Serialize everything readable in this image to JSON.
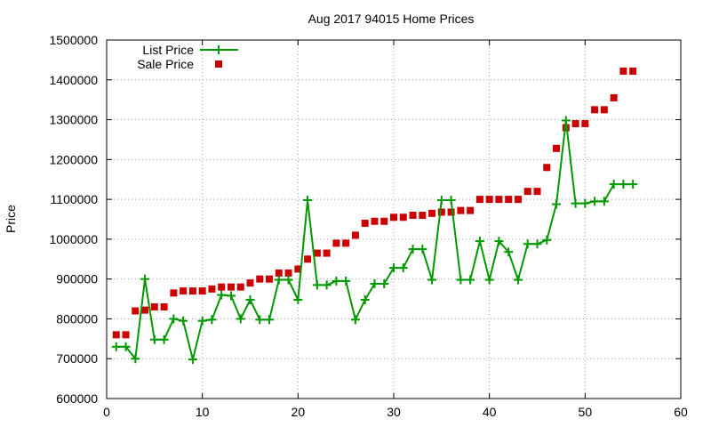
{
  "chart_data": {
    "type": "scatter",
    "title": "Aug 2017 94015 Home Prices",
    "xlabel": "",
    "ylabel": "Price",
    "xlim": [
      0,
      60
    ],
    "ylim": [
      600000,
      1500000
    ],
    "x_ticks": [
      0,
      10,
      20,
      30,
      40,
      50,
      60
    ],
    "y_ticks": [
      600000,
      700000,
      800000,
      900000,
      1000000,
      1100000,
      1200000,
      1300000,
      1400000,
      1500000
    ],
    "grid": true,
    "legend_position": "top-left",
    "series": [
      {
        "name": "List Price",
        "style": "linespoints",
        "color": "#009900",
        "x": [
          1,
          2,
          3,
          4,
          5,
          6,
          7,
          8,
          9,
          10,
          11,
          12,
          13,
          14,
          15,
          16,
          17,
          18,
          19,
          20,
          21,
          22,
          23,
          24,
          25,
          26,
          27,
          28,
          29,
          30,
          31,
          32,
          33,
          34,
          35,
          36,
          37,
          38,
          39,
          40,
          41,
          42,
          43,
          44,
          45,
          46,
          47,
          48,
          49,
          50,
          51,
          52,
          53,
          54,
          55
        ],
        "y": [
          730000,
          730000,
          700000,
          900000,
          748000,
          748000,
          800000,
          795000,
          698000,
          795000,
          798000,
          860000,
          858000,
          800000,
          848000,
          798000,
          798000,
          898000,
          898000,
          848000,
          1098000,
          885000,
          885000,
          895000,
          895000,
          798000,
          848000,
          888000,
          888000,
          928000,
          928000,
          975000,
          975000,
          898000,
          1098000,
          1098000,
          898000,
          898000,
          995000,
          898000,
          995000,
          968000,
          898000,
          988000,
          988000,
          998000,
          1088000,
          1298000,
          1090000,
          1090000,
          1095000,
          1095000,
          1138000,
          1138000,
          1138000
        ]
      },
      {
        "name": "Sale Price",
        "style": "points",
        "color": "#cc0000",
        "x": [
          1,
          2,
          3,
          4,
          5,
          6,
          7,
          8,
          9,
          10,
          11,
          12,
          13,
          14,
          15,
          16,
          17,
          18,
          19,
          20,
          21,
          22,
          23,
          24,
          25,
          26,
          27,
          28,
          29,
          30,
          31,
          32,
          33,
          34,
          35,
          36,
          37,
          38,
          39,
          40,
          41,
          42,
          43,
          44,
          45,
          46,
          47,
          48,
          49,
          50,
          51,
          52,
          53,
          54,
          55
        ],
        "y": [
          760000,
          760000,
          820000,
          822000,
          830000,
          830000,
          865000,
          870000,
          870000,
          870000,
          875000,
          880000,
          880000,
          880000,
          890000,
          900000,
          900000,
          915000,
          915000,
          925000,
          950000,
          965000,
          965000,
          990000,
          990000,
          1010000,
          1040000,
          1045000,
          1045000,
          1055000,
          1055000,
          1060000,
          1060000,
          1065000,
          1068000,
          1068000,
          1072000,
          1072000,
          1100000,
          1100000,
          1100000,
          1100000,
          1100000,
          1120000,
          1120000,
          1180000,
          1228000,
          1280000,
          1290000,
          1290000,
          1325000,
          1325000,
          1355000,
          1422000,
          1422000
        ]
      }
    ]
  }
}
